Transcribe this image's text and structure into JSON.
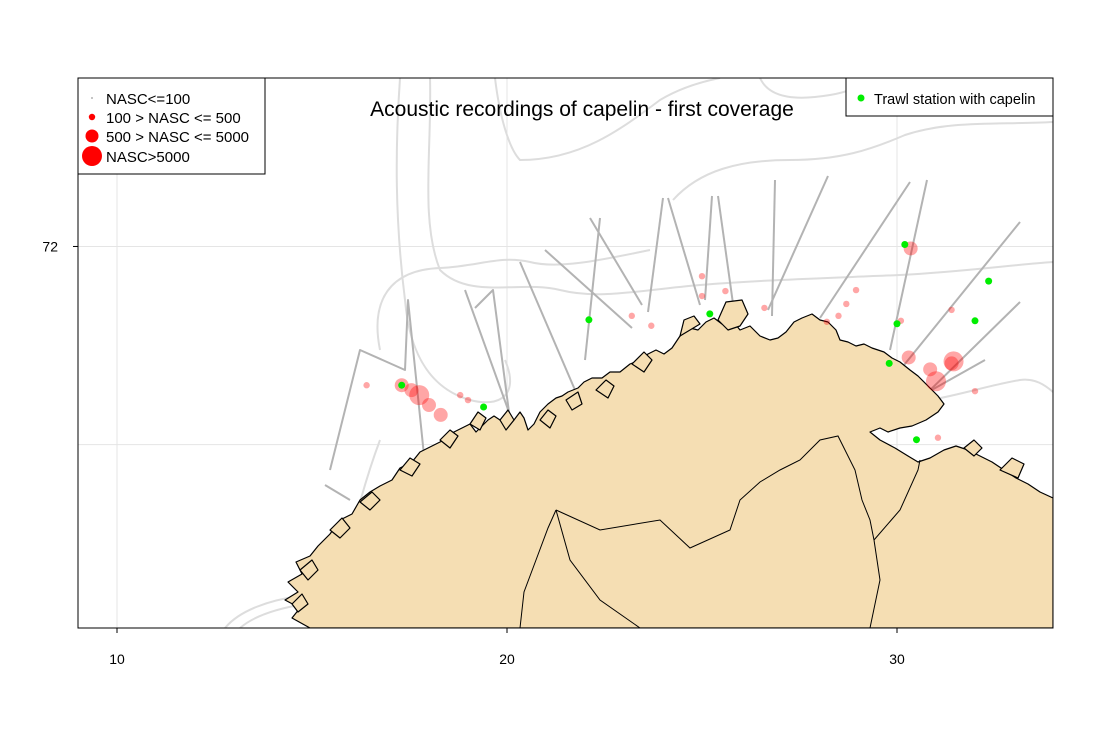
{
  "title": "Acoustic recordings of capelin - first coverage",
  "axes": {
    "x_ticks": [
      {
        "value": 10,
        "label": "10"
      },
      {
        "value": 20,
        "label": "20"
      },
      {
        "value": 30,
        "label": "30"
      }
    ],
    "y_ticks": [
      {
        "value": 72,
        "label": "72"
      }
    ],
    "grid_y_unlabeled": [
      70
    ],
    "xlim": [
      9,
      34
    ],
    "ylim": [
      68.15,
      73.7
    ],
    "grid": true
  },
  "legend_left": {
    "placement": "top-left",
    "entries": [
      {
        "label": "NASC<=100",
        "symbol": "small-gray-dot"
      },
      {
        "label": "100 > NASC <= 500",
        "symbol": "small-red-dot"
      },
      {
        "label": "500 > NASC <= 5000",
        "symbol": "medium-red-dot"
      },
      {
        "label": "NASC>5000",
        "symbol": "large-red-dot"
      }
    ]
  },
  "legend_right": {
    "placement": "top-right",
    "entries": [
      {
        "label": "Trawl station with capelin",
        "symbol": "green-dot"
      }
    ]
  },
  "colors": {
    "land": "#f5deb3",
    "coast": "#000000",
    "track": "#b3b3b3",
    "depth_contour": "#dddddd",
    "nasc": "#ff0000",
    "trawl": "#00ee00",
    "grid": "#e5e5e5",
    "frame": "#000000"
  },
  "chart_data": {
    "type": "scatter",
    "x_unit": "degrees longitude",
    "y_unit": "degrees latitude",
    "series": [
      {
        "name": "100 > NASC <= 500",
        "points": [
          {
            "lon": 16.4,
            "lat": 70.6
          },
          {
            "lon": 18.8,
            "lat": 70.5
          },
          {
            "lon": 19.0,
            "lat": 70.45
          },
          {
            "lon": 23.2,
            "lat": 71.3
          },
          {
            "lon": 23.7,
            "lat": 71.2
          },
          {
            "lon": 25.0,
            "lat": 71.7
          },
          {
            "lon": 25.0,
            "lat": 71.5
          },
          {
            "lon": 25.6,
            "lat": 71.55
          },
          {
            "lon": 26.6,
            "lat": 71.38
          },
          {
            "lon": 28.2,
            "lat": 71.24
          },
          {
            "lon": 28.5,
            "lat": 71.3
          },
          {
            "lon": 28.7,
            "lat": 71.42
          },
          {
            "lon": 28.95,
            "lat": 71.56
          },
          {
            "lon": 30.1,
            "lat": 71.25
          },
          {
            "lon": 31.4,
            "lat": 71.36
          },
          {
            "lon": 31.05,
            "lat": 70.07
          },
          {
            "lon": 32.0,
            "lat": 70.54
          }
        ]
      },
      {
        "name": "500 > NASC <= 5000",
        "points": [
          {
            "lon": 17.3,
            "lat": 70.6
          },
          {
            "lon": 17.55,
            "lat": 70.55
          },
          {
            "lon": 18.0,
            "lat": 70.4
          },
          {
            "lon": 18.3,
            "lat": 70.3
          },
          {
            "lon": 30.35,
            "lat": 71.98
          },
          {
            "lon": 30.3,
            "lat": 70.88
          },
          {
            "lon": 30.85,
            "lat": 70.76
          },
          {
            "lon": 31.4,
            "lat": 70.82
          }
        ]
      },
      {
        "name": "NASC>5000",
        "points": [
          {
            "lon": 17.75,
            "lat": 70.5
          },
          {
            "lon": 31.0,
            "lat": 70.64
          },
          {
            "lon": 31.45,
            "lat": 70.84
          }
        ]
      },
      {
        "name": "Trawl station with capelin",
        "points": [
          {
            "lon": 17.3,
            "lat": 70.6
          },
          {
            "lon": 19.4,
            "lat": 70.38
          },
          {
            "lon": 22.1,
            "lat": 71.26
          },
          {
            "lon": 25.2,
            "lat": 71.32
          },
          {
            "lon": 29.8,
            "lat": 70.82
          },
          {
            "lon": 30.0,
            "lat": 71.22
          },
          {
            "lon": 30.2,
            "lat": 72.02
          },
          {
            "lon": 30.5,
            "lat": 70.05
          },
          {
            "lon": 32.0,
            "lat": 71.25
          },
          {
            "lon": 32.35,
            "lat": 71.65
          }
        ]
      }
    ]
  }
}
